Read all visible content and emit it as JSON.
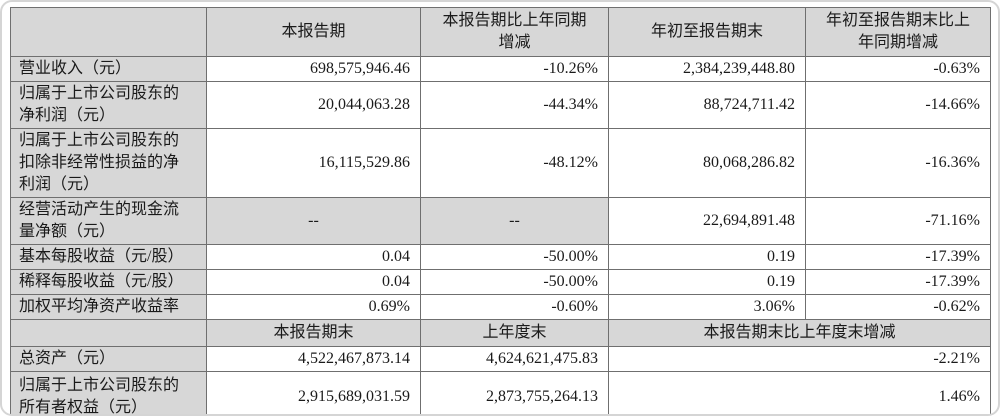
{
  "table": {
    "header_top": {
      "empty": "",
      "current_period": "本报告期",
      "yoy_change": "本报告期比上年同期增减",
      "ytd": "年初至报告期末",
      "ytd_yoy_change": "年初至报告期末比上年同期增减"
    },
    "rows_top": [
      {
        "label": "营业收入（元）",
        "current": "698,575,946.46",
        "yoy": "-10.26%",
        "ytd": "2,384,239,448.80",
        "ytd_yoy": "-0.63%"
      },
      {
        "label": "归属于上市公司股东的净利润（元）",
        "current": "20,044,063.28",
        "yoy": "-44.34%",
        "ytd": "88,724,711.42",
        "ytd_yoy": "-14.66%"
      },
      {
        "label": "归属于上市公司股东的扣除非经常性损益的净利润（元）",
        "current": "16,115,529.86",
        "yoy": "-48.12%",
        "ytd": "80,068,286.82",
        "ytd_yoy": "-16.36%"
      },
      {
        "label": "经营活动产生的现金流量净额（元）",
        "current": "--",
        "yoy": "--",
        "ytd": "22,694,891.48",
        "ytd_yoy": "-71.16%"
      },
      {
        "label": "基本每股收益（元/股）",
        "current": "0.04",
        "yoy": "-50.00%",
        "ytd": "0.19",
        "ytd_yoy": "-17.39%"
      },
      {
        "label": "稀释每股收益（元/股）",
        "current": "0.04",
        "yoy": "-50.00%",
        "ytd": "0.19",
        "ytd_yoy": "-17.39%"
      },
      {
        "label": "加权平均净资产收益率",
        "current": "0.69%",
        "yoy": "-0.60%",
        "ytd": "3.06%",
        "ytd_yoy": "-0.62%"
      }
    ],
    "header_bottom": {
      "empty": "",
      "end_of_period": "本报告期末",
      "end_of_last_year": "上年度末",
      "change_vs_last_year_end": "本报告期末比上年度末增减"
    },
    "rows_bottom": [
      {
        "label": "总资产（元）",
        "end_of_period": "4,522,467,873.14",
        "end_of_last_year": "4,624,621,475.83",
        "change": "-2.21%"
      },
      {
        "label": "归属于上市公司股东的所有者权益（元）",
        "end_of_period": "2,915,689,031.59",
        "end_of_last_year": "2,873,755,264.13",
        "change": "1.46%"
      }
    ]
  },
  "colors": {
    "header_bg": "#d7d7d7",
    "border": "#6f6f6f",
    "text": "#1a1a1a",
    "card_edge": "#d5d5d5"
  }
}
